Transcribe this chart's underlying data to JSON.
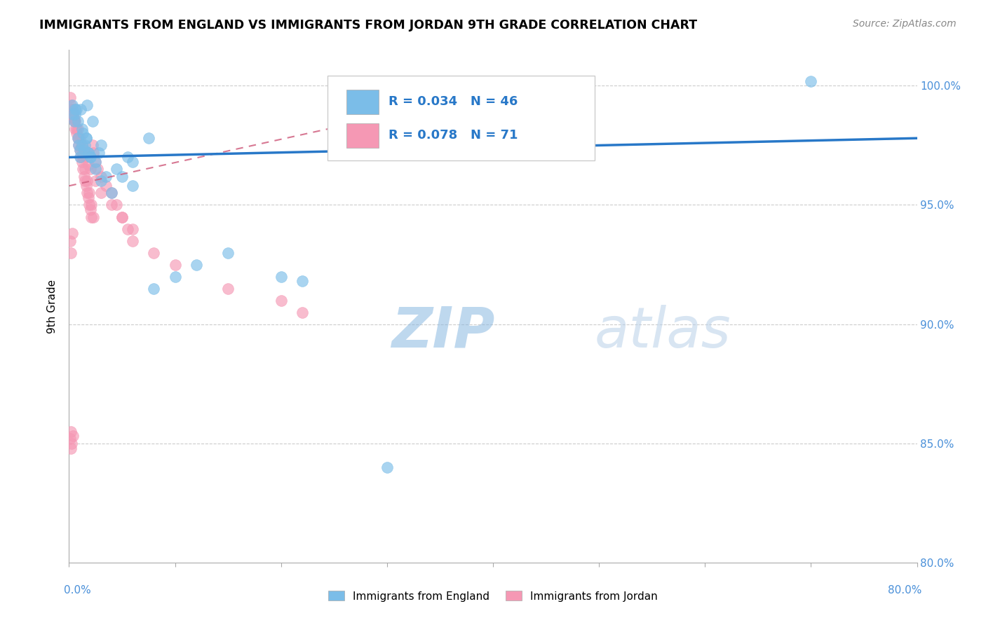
{
  "title": "IMMIGRANTS FROM ENGLAND VS IMMIGRANTS FROM JORDAN 9TH GRADE CORRELATION CHART",
  "source": "Source: ZipAtlas.com",
  "ylabel": "9th Grade",
  "x_min": 0.0,
  "x_max": 80.0,
  "y_min": 80.0,
  "y_max": 101.5,
  "england_R": 0.034,
  "england_N": 46,
  "jordan_R": 0.078,
  "jordan_N": 71,
  "england_color": "#7bbde8",
  "jordan_color": "#f598b4",
  "england_trend_color": "#2878c8",
  "jordan_trend_color": "#d06080",
  "watermark": "ZIPatlas",
  "watermark_color": "#cce0f5",
  "eng_x": [
    0.3,
    0.5,
    0.6,
    0.7,
    0.8,
    0.9,
    1.0,
    1.1,
    1.2,
    1.3,
    1.5,
    1.6,
    1.7,
    1.8,
    2.0,
    2.2,
    2.5,
    2.8,
    3.0,
    3.5,
    4.5,
    5.5,
    6.0,
    7.5,
    30.0,
    70.0,
    0.4,
    0.6,
    0.8,
    1.0,
    1.2,
    1.4,
    1.6,
    1.8,
    2.0,
    2.5,
    3.0,
    4.0,
    5.0,
    6.0,
    8.0,
    10.0,
    12.0,
    15.0,
    20.0,
    22.0
  ],
  "eng_y": [
    99.2,
    98.5,
    98.8,
    99.0,
    97.8,
    97.5,
    97.3,
    99.0,
    98.2,
    98.0,
    97.5,
    97.8,
    99.2,
    97.2,
    97.0,
    98.5,
    96.8,
    97.2,
    97.5,
    96.2,
    96.5,
    97.0,
    96.8,
    97.8,
    84.0,
    100.2,
    98.8,
    99.0,
    98.5,
    97.0,
    97.5,
    97.3,
    97.8,
    97.2,
    97.0,
    96.5,
    96.0,
    95.5,
    96.2,
    95.8,
    91.5,
    92.0,
    92.5,
    93.0,
    92.0,
    91.8
  ],
  "jor_x": [
    0.1,
    0.2,
    0.3,
    0.4,
    0.5,
    0.6,
    0.7,
    0.8,
    0.9,
    1.0,
    1.1,
    1.2,
    1.3,
    1.4,
    1.5,
    1.6,
    1.7,
    1.8,
    1.9,
    2.0,
    2.1,
    2.2,
    2.3,
    2.5,
    2.7,
    3.0,
    3.5,
    4.0,
    4.5,
    5.0,
    5.5,
    6.0,
    0.2,
    0.4,
    0.6,
    0.8,
    1.0,
    1.2,
    1.4,
    1.6,
    1.8,
    2.0,
    2.5,
    3.0,
    4.0,
    5.0,
    6.0,
    8.0,
    10.0,
    15.0,
    20.0,
    22.0,
    0.3,
    0.5,
    0.7,
    0.9,
    1.1,
    1.3,
    1.5,
    1.7,
    1.9,
    2.1,
    2.3,
    0.1,
    0.2,
    0.3,
    0.1,
    0.2,
    0.15,
    0.25,
    0.35
  ],
  "jor_y": [
    99.5,
    99.2,
    99.0,
    98.8,
    98.5,
    98.2,
    98.0,
    97.8,
    97.5,
    97.3,
    97.0,
    96.8,
    96.5,
    96.2,
    96.0,
    95.8,
    95.5,
    95.3,
    95.0,
    94.8,
    94.5,
    97.5,
    97.2,
    96.8,
    96.5,
    96.2,
    95.8,
    95.5,
    95.0,
    94.5,
    94.0,
    93.5,
    99.0,
    98.7,
    98.5,
    98.2,
    97.8,
    97.5,
    97.2,
    97.0,
    96.7,
    96.5,
    96.0,
    95.5,
    95.0,
    94.5,
    94.0,
    93.0,
    92.5,
    91.5,
    91.0,
    90.5,
    99.0,
    98.6,
    98.2,
    97.8,
    97.4,
    97.0,
    96.5,
    96.0,
    95.5,
    95.0,
    94.5,
    93.5,
    93.0,
    93.8,
    85.2,
    85.5,
    84.8,
    85.0,
    85.3
  ]
}
